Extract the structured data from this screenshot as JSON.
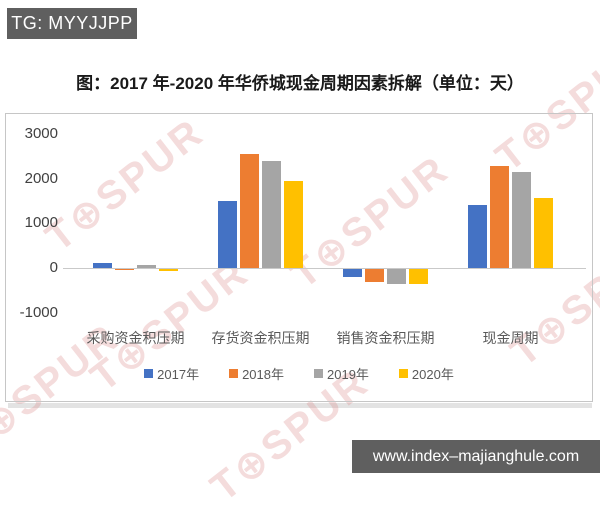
{
  "banner": {
    "text": "TG: MYYJJPP"
  },
  "title": "图：2017 年-2020 年华侨城现金周期因素拆解（单位：天）",
  "watermark": {
    "text": "T⊕SPUR",
    "color": "#DB8B8B"
  },
  "footer": {
    "url": "www.index–majianghule.com"
  },
  "chart_data": {
    "type": "bar",
    "title": "图：2017 年-2020 年华侨城现金周期因素拆解（单位：天）",
    "unit": "天",
    "categories": [
      "采购资金积压期",
      "存货资金积压期",
      "销售资金积压期",
      "现金周期"
    ],
    "series": [
      {
        "name": "2017年",
        "color": "#4472C4",
        "values": [
          110,
          1500,
          -180,
          1420
        ]
      },
      {
        "name": "2018年",
        "color": "#ED7D31",
        "values": [
          -20,
          2550,
          -280,
          2290
        ]
      },
      {
        "name": "2019年",
        "color": "#A5A5A5",
        "values": [
          60,
          2400,
          -340,
          2140
        ]
      },
      {
        "name": "2020年",
        "color": "#FFC000",
        "values": [
          -35,
          1950,
          -330,
          1560
        ]
      }
    ],
    "ylim": [
      -1000,
      3000
    ],
    "yticks": [
      3000,
      2000,
      1000,
      0,
      -1000
    ],
    "grid": false,
    "legend_position": "bottom"
  }
}
